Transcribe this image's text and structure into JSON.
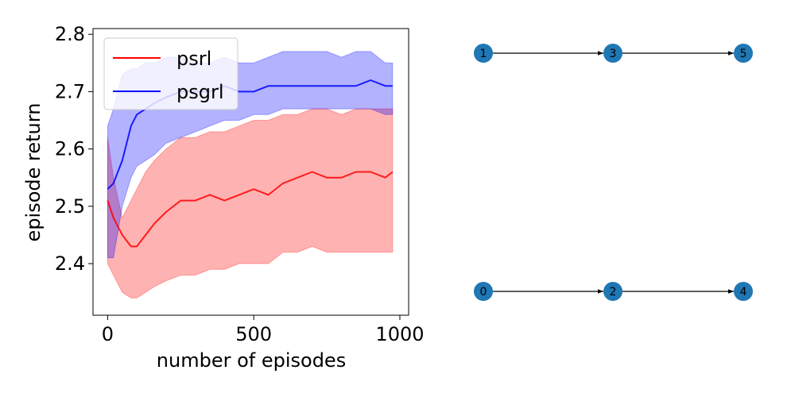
{
  "chart_data": [
    {
      "type": "line",
      "title": "",
      "xlabel": "number of episodes",
      "ylabel": "episode return",
      "xlim": [
        -50,
        1030
      ],
      "ylim": [
        2.31,
        2.81
      ],
      "xticks": [
        0,
        500,
        1000
      ],
      "xtick_labels": [
        "0",
        "500",
        "1000"
      ],
      "yticks": [
        2.4,
        2.5,
        2.6,
        2.7,
        2.8
      ],
      "ytick_labels": [
        "2.4",
        "2.5",
        "2.6",
        "2.7",
        "2.8"
      ],
      "grid": false,
      "legend_position": "top-left",
      "series": [
        {
          "name": "psrl",
          "color": "#ff0000",
          "x": [
            0,
            20,
            50,
            80,
            100,
            130,
            160,
            200,
            250,
            300,
            350,
            400,
            450,
            500,
            550,
            600,
            650,
            700,
            750,
            800,
            850,
            900,
            950,
            975
          ],
          "mean": [
            2.51,
            2.48,
            2.45,
            2.43,
            2.43,
            2.45,
            2.47,
            2.49,
            2.51,
            2.51,
            2.52,
            2.51,
            2.52,
            2.53,
            2.52,
            2.54,
            2.55,
            2.56,
            2.55,
            2.55,
            2.56,
            2.56,
            2.55,
            2.56
          ],
          "upper": [
            2.62,
            2.55,
            2.48,
            2.51,
            2.53,
            2.56,
            2.58,
            2.6,
            2.62,
            2.62,
            2.63,
            2.63,
            2.64,
            2.65,
            2.65,
            2.66,
            2.66,
            2.67,
            2.67,
            2.66,
            2.67,
            2.67,
            2.67,
            2.67
          ],
          "lower": [
            2.4,
            2.38,
            2.35,
            2.34,
            2.34,
            2.35,
            2.36,
            2.37,
            2.38,
            2.38,
            2.39,
            2.39,
            2.4,
            2.4,
            2.4,
            2.42,
            2.42,
            2.43,
            2.42,
            2.42,
            2.42,
            2.42,
            2.42,
            2.42
          ]
        },
        {
          "name": "psgrl",
          "color": "#0000ff",
          "x": [
            0,
            20,
            50,
            80,
            100,
            130,
            160,
            200,
            250,
            300,
            350,
            400,
            450,
            500,
            550,
            600,
            650,
            700,
            750,
            800,
            850,
            900,
            950,
            975
          ],
          "mean": [
            2.53,
            2.54,
            2.58,
            2.64,
            2.66,
            2.67,
            2.68,
            2.69,
            2.7,
            2.7,
            2.7,
            2.71,
            2.7,
            2.7,
            2.71,
            2.71,
            2.71,
            2.71,
            2.71,
            2.71,
            2.71,
            2.72,
            2.71,
            2.71
          ],
          "upper": [
            2.64,
            2.67,
            2.73,
            2.74,
            2.74,
            2.75,
            2.75,
            2.76,
            2.76,
            2.75,
            2.75,
            2.76,
            2.75,
            2.75,
            2.76,
            2.77,
            2.77,
            2.77,
            2.77,
            2.76,
            2.77,
            2.77,
            2.75,
            2.75
          ],
          "lower": [
            2.41,
            2.41,
            2.5,
            2.55,
            2.57,
            2.58,
            2.59,
            2.61,
            2.62,
            2.63,
            2.64,
            2.65,
            2.65,
            2.66,
            2.66,
            2.67,
            2.67,
            2.67,
            2.67,
            2.67,
            2.67,
            2.67,
            2.66,
            2.66
          ]
        }
      ]
    },
    {
      "type": "diagram",
      "nodes": [
        {
          "id": "1",
          "label": "1",
          "color": "#1f77b4"
        },
        {
          "id": "3",
          "label": "3",
          "color": "#1f77b4"
        },
        {
          "id": "5",
          "label": "5",
          "color": "#1f77b4"
        },
        {
          "id": "0",
          "label": "0",
          "color": "#1f77b4"
        },
        {
          "id": "2",
          "label": "2",
          "color": "#1f77b4"
        },
        {
          "id": "4",
          "label": "4",
          "color": "#1f77b4"
        }
      ],
      "edges": [
        {
          "from": "1",
          "to": "3"
        },
        {
          "from": "3",
          "to": "5"
        },
        {
          "from": "0",
          "to": "2"
        },
        {
          "from": "2",
          "to": "4"
        }
      ]
    }
  ]
}
